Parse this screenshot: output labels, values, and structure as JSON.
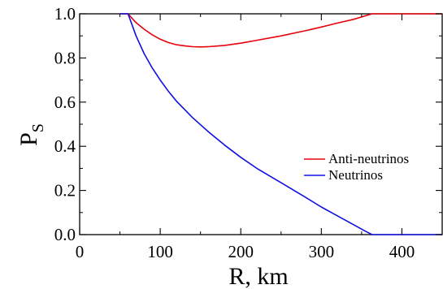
{
  "chart_data": {
    "type": "line",
    "xlabel": "R, km",
    "ylabel_main": "P",
    "ylabel_sub": "S",
    "xlim": [
      0,
      450
    ],
    "ylim": [
      0,
      1.0
    ],
    "xticks": [
      0,
      100,
      200,
      300,
      400
    ],
    "xtick_labels": [
      "0",
      "100",
      "200",
      "300",
      "400"
    ],
    "yticks": [
      0.0,
      0.2,
      0.4,
      0.6,
      0.8,
      1.0
    ],
    "ytick_labels": [
      "0.0",
      "0.2",
      "0.4",
      "0.6",
      "0.8",
      "1.0"
    ],
    "grid": false,
    "legend_position": "right",
    "series": [
      {
        "name": "Anti-neutrinos",
        "color": "#e8000b",
        "x": [
          50,
          60,
          70,
          80,
          90,
          100,
          110,
          120,
          130,
          140,
          150,
          160,
          180,
          200,
          220,
          250,
          280,
          300,
          320,
          340,
          363,
          400,
          450
        ],
        "y": [
          1.0,
          1.0,
          0.96,
          0.93,
          0.905,
          0.885,
          0.87,
          0.86,
          0.855,
          0.851,
          0.85,
          0.851,
          0.857,
          0.867,
          0.88,
          0.9,
          0.923,
          0.94,
          0.958,
          0.975,
          1.0,
          1.0,
          1.0
        ]
      },
      {
        "name": "Neutrinos",
        "color": "#1010e0",
        "x": [
          50,
          60,
          70,
          80,
          90,
          100,
          110,
          120,
          140,
          160,
          180,
          200,
          220,
          250,
          280,
          300,
          320,
          340,
          355,
          363,
          400,
          450
        ],
        "y": [
          1.0,
          1.0,
          0.9,
          0.82,
          0.755,
          0.7,
          0.65,
          0.605,
          0.53,
          0.465,
          0.405,
          0.35,
          0.3,
          0.235,
          0.17,
          0.125,
          0.085,
          0.045,
          0.015,
          0.0,
          0.0,
          0.0
        ]
      }
    ]
  }
}
